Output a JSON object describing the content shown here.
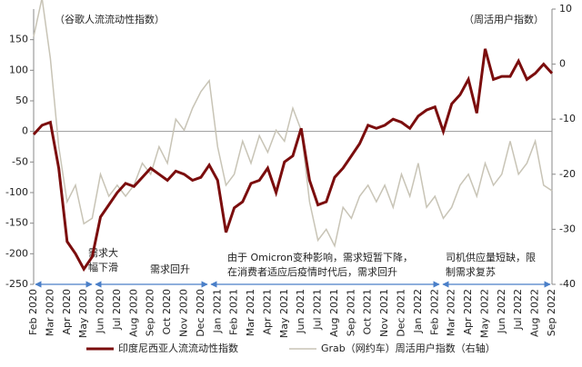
{
  "chart_data": {
    "type": "line",
    "y_label": "（谷歌人流流动性指数）",
    "y2_label": "（周活用户指数）",
    "categories": [
      "Feb 2020",
      null,
      "Mar 2020",
      null,
      "Apr 2020",
      null,
      "May 2020",
      null,
      "Jun 2020",
      null,
      "Jul 2020",
      null,
      "Aug 2020",
      null,
      "Sep 2020",
      null,
      "Oct 2020",
      null,
      "Nov 2020",
      null,
      "Dec 2020",
      null,
      "Jan 2021",
      null,
      "Feb 2021",
      null,
      "Mar 2021",
      null,
      "Apr 2021",
      null,
      "May 2021",
      null,
      "Jun 2021",
      null,
      "Jul 2021",
      null,
      "Aug 2021",
      null,
      "Sep 2021",
      null,
      "Oct 2021",
      null,
      "Nov 2021",
      null,
      "Dec 2021",
      null,
      "Jan 2022",
      null,
      "Feb 2022",
      null,
      "Mar 2022",
      null,
      "Apr 2022",
      null,
      "May 2022",
      null,
      "Jun 2022",
      null,
      "Jul 2022",
      null,
      "Aug 2022",
      null,
      "Sep 2022"
    ],
    "series": [
      {
        "name": "印度尼西亚人流流动性指数",
        "color": "#7b0d0d",
        "values": [
          -5,
          10,
          15,
          -60,
          -180,
          -200,
          -225,
          -205,
          -140,
          -120,
          -100,
          -85,
          -90,
          -75,
          -60,
          -70,
          -80,
          -65,
          -70,
          -80,
          -75,
          -55,
          -80,
          -165,
          -125,
          -115,
          -85,
          -80,
          -60,
          -100,
          -50,
          -40,
          5,
          -80,
          -120,
          -115,
          -75,
          -60,
          -40,
          -20,
          10,
          5,
          10,
          20,
          15,
          5,
          25,
          35,
          40,
          0,
          45,
          60,
          85,
          30,
          135,
          85,
          90,
          90,
          115,
          85,
          95,
          110,
          95
        ]
      },
      {
        "name": "Grab（网约车）周活用户指数（右轴）",
        "color": "#c8c4b6",
        "axis": "y2",
        "values": [
          5,
          12,
          1,
          -15,
          -25,
          -22,
          -29,
          -28,
          -20,
          -24,
          -22,
          -24,
          -22,
          -18,
          -20,
          -15,
          -18,
          -10,
          -12,
          -8,
          -5,
          -3,
          -15,
          -22,
          -20,
          -14,
          -18,
          -13,
          -16,
          -12,
          -14,
          -8,
          -12,
          -25,
          -32,
          -30,
          -33,
          -26,
          -28,
          -24,
          -22,
          -25,
          -22,
          -26,
          -20,
          -24,
          -18,
          -26,
          -24,
          -28,
          -26,
          -22,
          -20,
          -24,
          -18,
          -22,
          -20,
          -14,
          -20,
          -18,
          -14,
          -22,
          -23
        ]
      }
    ],
    "ylim": [
      -250,
      200
    ],
    "yticks": [
      -250,
      -200,
      -150,
      -100,
      -50,
      0,
      50,
      100,
      150
    ],
    "y2lim": [
      -40,
      10
    ],
    "y2ticks": [
      -40,
      -30,
      -20,
      -10,
      0,
      10
    ],
    "annotations": [
      {
        "lines": [
          "需求大",
          "幅下滑"
        ]
      },
      {
        "lines": [
          "需求回升"
        ]
      },
      {
        "lines": [
          "由于 Omicron变种影响，需求短暂下降，",
          "在消费者适应后疫情时代后，需求回升"
        ]
      },
      {
        "lines": [
          "司机供应量短缺，限",
          "制需求复苏"
        ]
      }
    ]
  }
}
